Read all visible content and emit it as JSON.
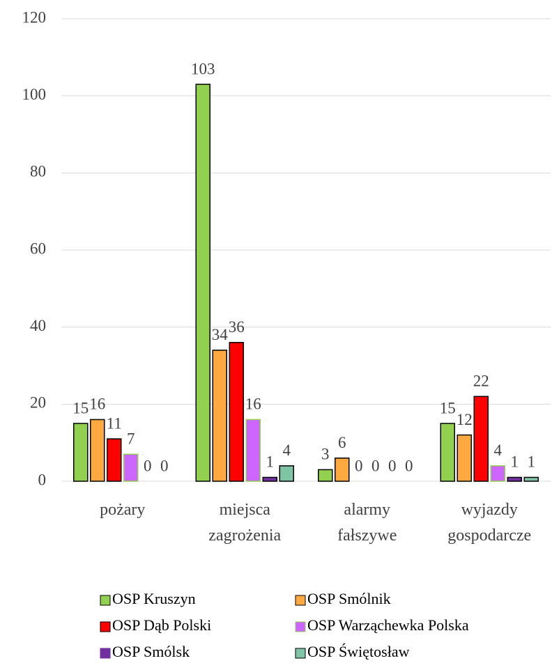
{
  "chart_data": {
    "type": "bar",
    "categories": [
      "pożary",
      "miejsca zagrożenia",
      "alarmy fałszywe",
      "wyjazdy gospodarcze"
    ],
    "series": [
      {
        "name": "OSP Kruszyn",
        "color": "#92d050",
        "values": [
          15,
          103,
          3,
          15
        ]
      },
      {
        "name": "OSP Smólnik",
        "color": "#ffa940",
        "values": [
          16,
          34,
          6,
          12
        ]
      },
      {
        "name": "OSP Dąb Polski",
        "color": "#ff0000",
        "values": [
          11,
          36,
          0,
          22
        ]
      },
      {
        "name": "OSP Warząchewka Polska",
        "color": "#cc66ff",
        "values": [
          7,
          16,
          0,
          4
        ]
      },
      {
        "name": "OSP Smólsk",
        "color": "#7030a0",
        "values": [
          0,
          1,
          0,
          1
        ]
      },
      {
        "name": "OSP Świętosław",
        "color": "#7fc4a4",
        "values": [
          0,
          4,
          0,
          1
        ]
      }
    ],
    "ylim": [
      0,
      120
    ],
    "yticks": [
      0,
      20,
      40,
      60,
      80,
      100,
      120
    ],
    "grid": true,
    "legend": "bottom"
  }
}
